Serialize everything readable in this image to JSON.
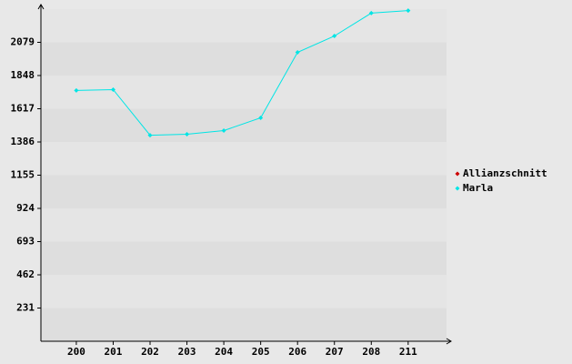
{
  "chart_data": {
    "type": "line",
    "categories": [
      "200",
      "201",
      "202",
      "203",
      "204",
      "205",
      "206",
      "207",
      "208",
      "211"
    ],
    "series": [
      {
        "name": "Allianzschnitt",
        "color": "#cc0000",
        "values": [
          null,
          null,
          null,
          null,
          null,
          null,
          null,
          null,
          null,
          null
        ]
      },
      {
        "name": "Marla",
        "color": "#00e5e5",
        "values": [
          1744,
          1750,
          1433,
          1440,
          1465,
          1554,
          2009,
          2123,
          2282,
          2300
        ]
      }
    ],
    "ylim": [
      0,
      2310
    ],
    "yticks": [
      231,
      462,
      693,
      924,
      1155,
      1386,
      1617,
      1848,
      2079
    ],
    "grid": true
  }
}
